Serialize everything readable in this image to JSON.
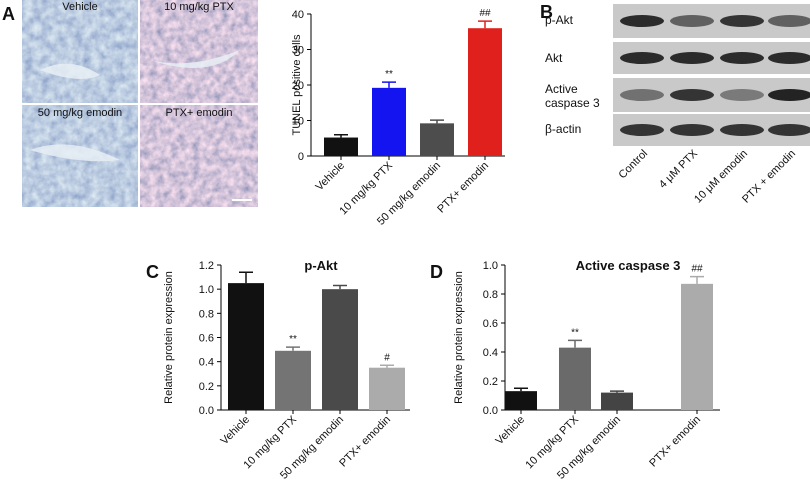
{
  "panel_labels": [
    "A",
    "B",
    "C",
    "D"
  ],
  "micrographs": [
    "Vehicle",
    "10 mg/kg PTX",
    "50 mg/kg emodin",
    "PTX+ emodin"
  ],
  "blot": {
    "bands": [
      "p-Akt",
      "Akt",
      "Active caspase 3",
      "β-actin"
    ],
    "lanes": [
      "Control",
      "4 μM PTX",
      "10 μM emodin",
      "PTX + emodin"
    ]
  },
  "chart_data": [
    {
      "type": "bar",
      "y_label": "TUNEL positive cells",
      "categories": [
        "Vehicle",
        "10 mg/kg PTX",
        "50 mg/kg emodin",
        "PTX+ emodin"
      ],
      "values": [
        5.2,
        19.2,
        9.2,
        36.0
      ],
      "errors": [
        0.8,
        1.6,
        0.9,
        2.0
      ],
      "annotations": [
        null,
        "**",
        null,
        "##"
      ],
      "colors": [
        "#111111",
        "#1414f0",
        "#4d4d4d",
        "#e0201c"
      ],
      "ylim": [
        0,
        40
      ],
      "yticks": [
        0,
        10,
        20,
        30,
        40
      ],
      "grid": false
    },
    {
      "type": "bar",
      "title": "p-Akt",
      "y_label": "Relative protein expression",
      "categories": [
        "Vehicle",
        "10 mg/kg PTX",
        "50 mg/kg emodin",
        "PTX+ emodin"
      ],
      "values": [
        1.05,
        0.49,
        1.0,
        0.35
      ],
      "errors": [
        0.09,
        0.03,
        0.03,
        0.02
      ],
      "annotations": [
        null,
        "**",
        null,
        "#"
      ],
      "colors": [
        "#111111",
        "#747474",
        "#4a4a4a",
        "#ababab"
      ],
      "ylim": [
        0,
        1.2
      ],
      "yticks": [
        {
          "value": 0,
          "label": "0.0"
        },
        {
          "value": 0.2,
          "label": "0.2"
        },
        {
          "value": 0.4,
          "label": "0.4"
        },
        {
          "value": 0.6,
          "label": "0.6"
        },
        {
          "value": 0.8,
          "label": "0.8"
        },
        {
          "value": 1.0,
          "label": "1.0"
        },
        {
          "value": 1.2,
          "label": "1.2"
        }
      ],
      "grid": false
    },
    {
      "type": "bar",
      "title": "Active caspase 3",
      "y_label": "Relative protein expression",
      "categories": [
        "Vehicle",
        "10 mg/kg PTX",
        "50 mg/kg emodin",
        "PTX+ emodin"
      ],
      "values": [
        0.13,
        0.43,
        0.12,
        0.87
      ],
      "errors": [
        0.02,
        0.05,
        0.01,
        0.05
      ],
      "annotations": [
        null,
        "**",
        null,
        "##"
      ],
      "colors": [
        "#111111",
        "#6a6a6a",
        "#444444",
        "#ababab"
      ],
      "ylim": [
        0,
        1.0
      ],
      "yticks": [
        {
          "value": 0,
          "label": "0.0"
        },
        {
          "value": 0.2,
          "label": "0.2"
        },
        {
          "value": 0.4,
          "label": "0.4"
        },
        {
          "value": 0.6,
          "label": "0.6"
        },
        {
          "value": 0.8,
          "label": "0.8"
        },
        {
          "value": 1.0,
          "label": "1.0"
        }
      ],
      "grid": false
    }
  ]
}
